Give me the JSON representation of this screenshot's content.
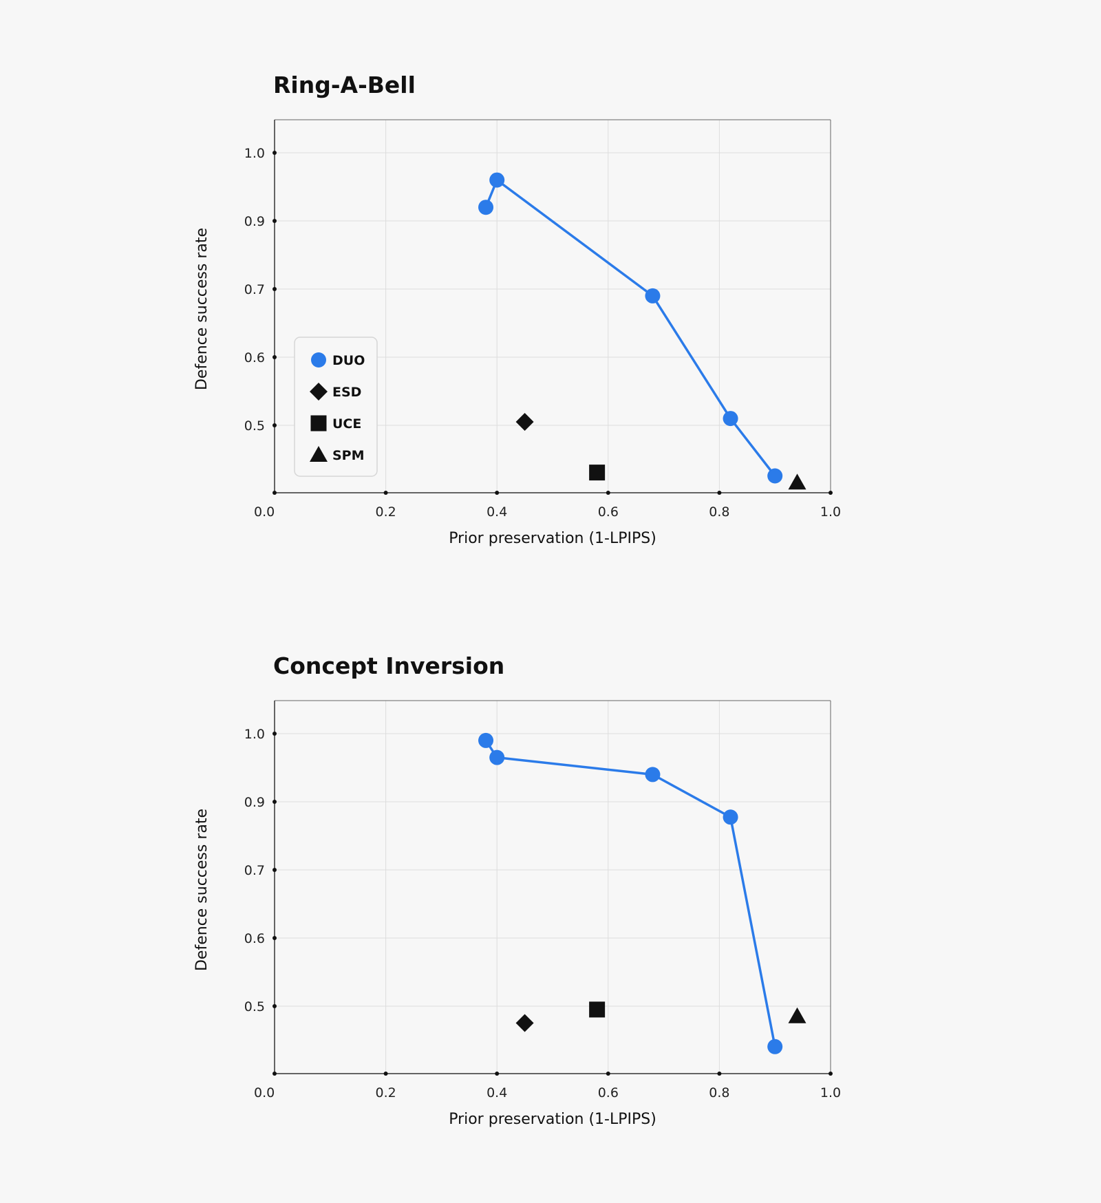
{
  "chart_data": [
    {
      "type": "scatter",
      "title": "Ring-A-Bell",
      "xlabel": "Prior preservation (1-LPIPS)",
      "ylabel": "Defence success rate",
      "xlim": [
        0.0,
        1.0
      ],
      "ylim": [
        0.4,
        1.05
      ],
      "x_ticks": [
        "0.0",
        "0.2",
        "0.4",
        "0.6",
        "0.8",
        "1.0"
      ],
      "y_ticks": [
        "1.0",
        "0.9",
        "0.7",
        "0.6",
        "0.5"
      ],
      "grid": true,
      "legend_position": "lower-left",
      "series": [
        {
          "name": "DUO",
          "marker": "circle",
          "color": "#2b7be9",
          "connected": true,
          "points": [
            [
              0.38,
              0.92
            ],
            [
              0.4,
              0.96
            ],
            [
              0.68,
              0.69
            ],
            [
              0.82,
              0.51
            ],
            [
              0.9,
              0.425
            ]
          ]
        },
        {
          "name": "ESD",
          "marker": "diamond",
          "color": "#111111",
          "connected": false,
          "points": [
            [
              0.45,
              0.505
            ]
          ]
        },
        {
          "name": "UCE",
          "marker": "square",
          "color": "#111111",
          "connected": false,
          "points": [
            [
              0.58,
              0.43
            ]
          ]
        },
        {
          "name": "SPM",
          "marker": "triangle",
          "color": "#111111",
          "connected": false,
          "points": [
            [
              0.94,
              0.415
            ]
          ]
        }
      ]
    },
    {
      "type": "scatter",
      "title": "Concept Inversion",
      "xlabel": "Prior preservation (1-LPIPS)",
      "ylabel": "Defence success rate",
      "xlim": [
        0.0,
        1.0
      ],
      "ylim": [
        0.4,
        1.05
      ],
      "x_ticks": [
        "0.0",
        "0.2",
        "0.4",
        "0.6",
        "0.8",
        "1.0"
      ],
      "y_ticks": [
        "1.0",
        "0.9",
        "0.7",
        "0.6",
        "0.5"
      ],
      "grid": true,
      "series": [
        {
          "name": "DUO",
          "marker": "circle",
          "color": "#2b7be9",
          "connected": true,
          "points": [
            [
              0.38,
              0.99
            ],
            [
              0.4,
              0.965
            ],
            [
              0.68,
              0.94
            ],
            [
              0.82,
              0.855
            ],
            [
              0.9,
              0.44
            ]
          ]
        },
        {
          "name": "ESD",
          "marker": "diamond",
          "color": "#111111",
          "connected": false,
          "points": [
            [
              0.45,
              0.475
            ]
          ]
        },
        {
          "name": "UCE",
          "marker": "square",
          "color": "#111111",
          "connected": false,
          "points": [
            [
              0.58,
              0.495
            ]
          ]
        },
        {
          "name": "SPM",
          "marker": "triangle",
          "color": "#111111",
          "connected": false,
          "points": [
            [
              0.94,
              0.485
            ]
          ]
        }
      ]
    }
  ]
}
